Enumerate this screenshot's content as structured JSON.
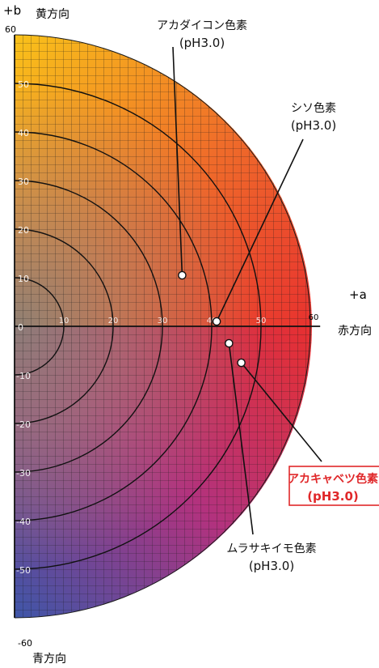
{
  "chart_data": {
    "type": "scatter",
    "description_free": true,
    "axes": {
      "a_axis_label": "+a",
      "a_axis_direction": "赤方向",
      "b_axis_label": "+b",
      "b_top_direction": "黄方向",
      "b_bottom_direction": "青方向",
      "a_ticks": [
        "10",
        "20",
        "30",
        "40",
        "50",
        "60"
      ],
      "b_ticks_positive": [
        "60",
        "50",
        "40",
        "30",
        "20",
        "10",
        "0"
      ],
      "b_ticks_negative": [
        "-10",
        "-20",
        "-30",
        "-40",
        "-50",
        "-60"
      ],
      "xlim": [
        0,
        60
      ],
      "ylim": [
        -60,
        60
      ]
    },
    "grid": true,
    "chroma_rings": [
      10,
      20,
      30,
      40,
      50,
      60
    ],
    "points": [
      {
        "name": "アカダイコン色素",
        "sub": "(pH3.0)",
        "a": 34,
        "b": 10.5,
        "highlight": false
      },
      {
        "name": "シソ色素",
        "sub": "(pH3.0)",
        "a": 41,
        "b": 1.0,
        "highlight": false
      },
      {
        "name": "ムラサキイモ色素",
        "sub": "(pH3.0)",
        "a": 43.5,
        "b": -3.5,
        "highlight": false
      },
      {
        "name": "アカキャベツ色素",
        "sub": "(pH3.0)",
        "a": 46,
        "b": -7.5,
        "highlight": true
      }
    ]
  }
}
